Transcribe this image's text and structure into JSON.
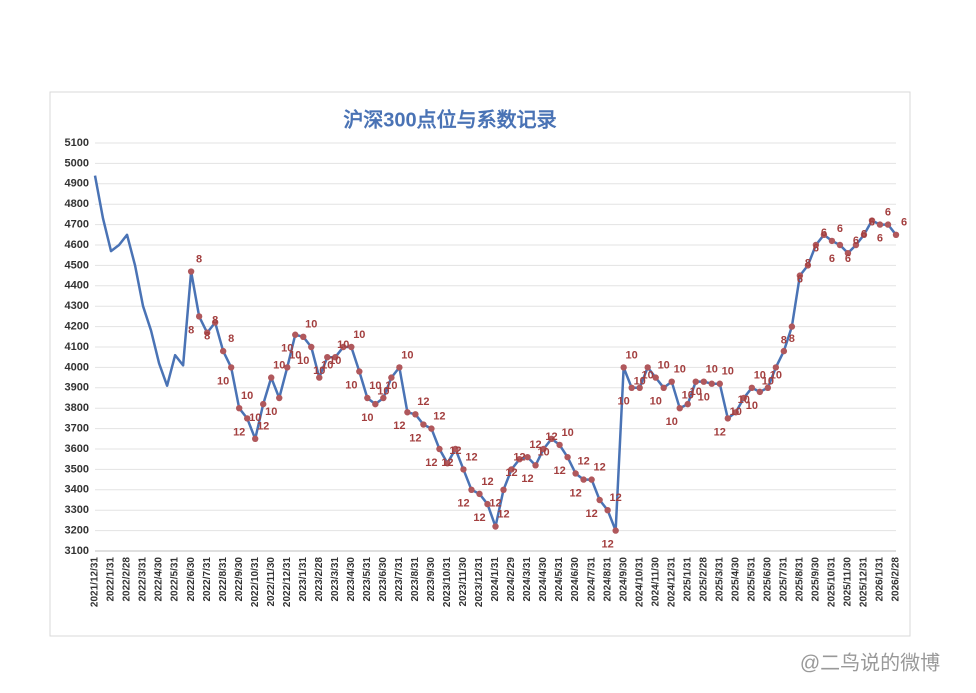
{
  "chart_data": {
    "type": "line",
    "title": "沪深300点位与系数记录",
    "watermark": "@二鸟说的微博",
    "categories": [
      "2021/12/31",
      null,
      "2022/1/31",
      null,
      "2022/2/28",
      null,
      "2022/3/31",
      null,
      "2022/4/30",
      null,
      "2022/5/31",
      null,
      "2022/6/30",
      null,
      "2022/7/31",
      null,
      "2022/8/31",
      null,
      "2022/9/30",
      null,
      "2022/10/31",
      null,
      "2022/11/30",
      null,
      "2022/12/31",
      null,
      "2023/1/31",
      null,
      "2023/2/28",
      null,
      "2023/3/31",
      null,
      "2023/4/30",
      null,
      "2023/5/31",
      null,
      "2023/6/30",
      null,
      "2023/7/31",
      null,
      "2023/8/31",
      null,
      "2023/9/30",
      null,
      "2023/10/31",
      null,
      "2023/11/30",
      null,
      "2023/12/31",
      null,
      "2024/1/31",
      null,
      "2024/2/29",
      null,
      "2024/3/31",
      null,
      "2024/4/30",
      null,
      "2024/5/31",
      null,
      "2024/6/30",
      null,
      "2024/7/31",
      null,
      "2024/8/31",
      null,
      "2024/9/30",
      null,
      "2024/10/31",
      null,
      "2024/11/30",
      null,
      "2024/12/31",
      null,
      "2025/1/31",
      null,
      "2025/2/28",
      null,
      "2025/3/31",
      null,
      "2025/4/30",
      null,
      "2025/5/31",
      null,
      "2025/6/30",
      null,
      "2025/7/31",
      null,
      "2025/8/31",
      null,
      "2025/9/30",
      null,
      "2025/10/31",
      null,
      "2025/11/30",
      null,
      "2025/12/31",
      null,
      "2026/1/31",
      null,
      "2026/2/28"
    ],
    "values": [
      4940,
      4730,
      4570,
      4600,
      4650,
      4500,
      4300,
      4180,
      4020,
      3910,
      4060,
      4010,
      4470,
      4250,
      4170,
      4220,
      4080,
      4000,
      3800,
      3750,
      3650,
      3820,
      3950,
      3850,
      4000,
      4160,
      4150,
      4100,
      3950,
      4050,
      4050,
      4100,
      4100,
      3980,
      3850,
      3820,
      3850,
      3950,
      4000,
      3780,
      3770,
      3720,
      3700,
      3600,
      3530,
      3600,
      3500,
      3400,
      3380,
      3330,
      3220,
      3400,
      3500,
      3550,
      3560,
      3520,
      3600,
      3650,
      3620,
      3560,
      3480,
      3450,
      3450,
      3350,
      3300,
      3200,
      4000,
      3900,
      3900,
      4000,
      3950,
      3900,
      3930,
      3800,
      3820,
      3930,
      3930,
      3920,
      3920,
      3750,
      3780,
      3850,
      3900,
      3880,
      3900,
      4000,
      4080,
      4200,
      4450,
      4500,
      4600,
      4650,
      4620,
      4600,
      4560,
      4600,
      4650,
      4720,
      4700,
      4700,
      4650
    ],
    "labels": [
      null,
      null,
      null,
      null,
      null,
      null,
      null,
      null,
      null,
      null,
      null,
      null,
      8,
      8,
      8,
      8,
      8,
      10,
      10,
      12,
      12,
      10,
      10,
      10,
      10,
      10,
      10,
      10,
      10,
      10,
      10,
      10,
      10,
      10,
      10,
      10,
      10,
      10,
      10,
      12,
      12,
      12,
      12,
      12,
      12,
      12,
      12,
      12,
      12,
      12,
      12,
      12,
      12,
      12,
      12,
      12,
      12,
      10,
      10,
      12,
      12,
      12,
      12,
      12,
      12,
      12,
      10,
      10,
      10,
      10,
      10,
      10,
      10,
      10,
      10,
      10,
      10,
      10,
      10,
      12,
      10,
      10,
      10,
      10,
      10,
      10,
      8,
      8,
      8,
      6,
      6,
      6,
      6,
      6,
      6,
      6,
      6,
      6,
      6,
      6,
      6
    ],
    "color": "#4a73b5",
    "marker_color": "#b0585c",
    "label_color": "#a33f3f",
    "ylim": [
      3100,
      5100
    ],
    "yticks": [
      3100,
      3200,
      3300,
      3400,
      3500,
      3600,
      3700,
      3800,
      3900,
      4000,
      4100,
      4200,
      4300,
      4400,
      4500,
      4600,
      4700,
      4800,
      4900,
      5000,
      5100
    ],
    "grid": true
  }
}
